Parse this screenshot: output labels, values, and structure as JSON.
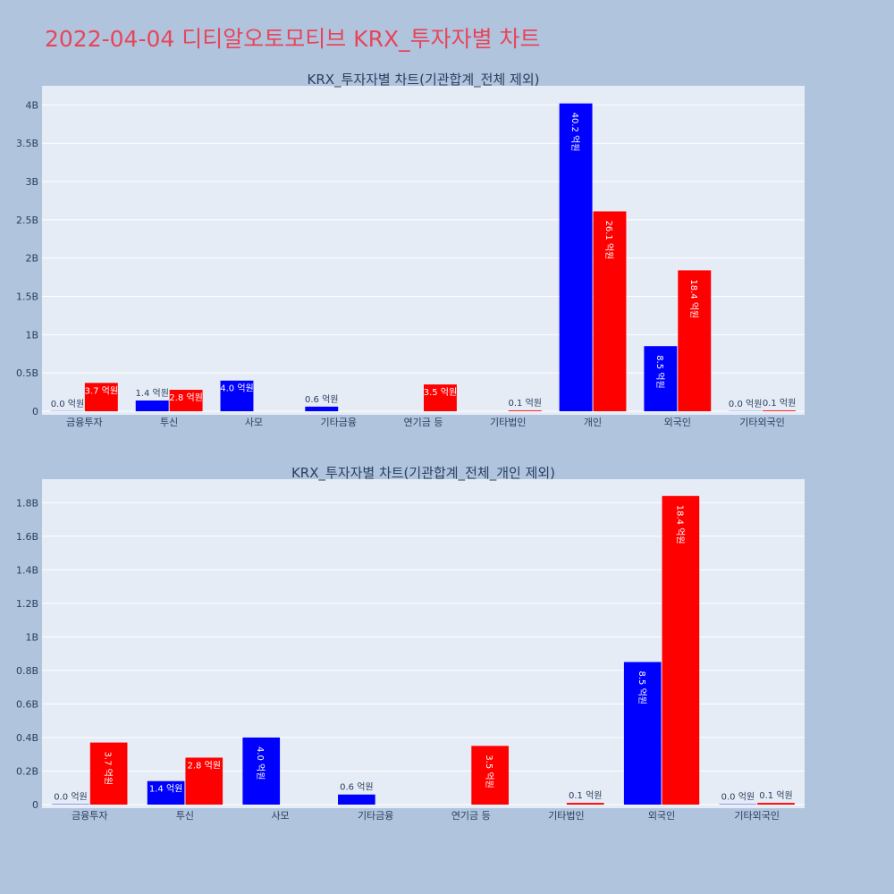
{
  "title": "2022-04-04 디티알오토모티브 KRX_투자자별 차트",
  "colors": {
    "buy": "#0000ff",
    "sell": "#ff0000",
    "title": "#e8455a",
    "background": "#b0c4de",
    "plot_bg": "#e5ecf6"
  },
  "chart_data": [
    {
      "type": "bar",
      "title": "KRX_투자자별 차트(기관합계_전체 제외)",
      "categories": [
        "금융투자",
        "투신",
        "사모",
        "기타금융",
        "연기금 등",
        "기타법인",
        "개인",
        "외국인",
        "기타외국인"
      ],
      "yticks": [
        "0",
        "0.5B",
        "1B",
        "1.5B",
        "2B",
        "2.5B",
        "3B",
        "3.5B",
        "4B"
      ],
      "ylim": [
        0,
        4250000000
      ],
      "grid": true,
      "series": [
        {
          "values": [
            2000000,
            140000000,
            400000000,
            60000000,
            0,
            0,
            4020000000,
            850000000,
            2000000
          ],
          "labels": [
            "0.0 억원",
            "1.4 억원",
            "4.0 억원",
            "0.6 억원",
            "",
            "",
            "40.2 억원",
            "8.5 억원",
            "0.0 억원"
          ]
        },
        {
          "values": [
            370000000,
            280000000,
            0,
            0,
            350000000,
            10000000,
            2610000000,
            1840000000,
            10000000
          ],
          "labels": [
            "3.7 억원",
            "2.8 억원",
            "",
            "",
            "3.5 억원",
            "0.1 억원",
            "26.1 억원",
            "18.4 억원",
            "0.1 억원"
          ]
        }
      ]
    },
    {
      "type": "bar",
      "title": "KRX_투자자별 차트(기관합계_전체_개인 제외)",
      "categories": [
        "금융투자",
        "투신",
        "사모",
        "기타금융",
        "연기금 등",
        "기타법인",
        "외국인",
        "기타외국인"
      ],
      "yticks": [
        "0",
        "0.2B",
        "0.4B",
        "0.6B",
        "0.8B",
        "1B",
        "1.2B",
        "1.4B",
        "1.6B",
        "1.8B"
      ],
      "ylim": [
        0,
        1940000000
      ],
      "grid": true,
      "series": [
        {
          "values": [
            2000000,
            140000000,
            400000000,
            60000000,
            0,
            0,
            850000000,
            2000000
          ],
          "labels": [
            "0.0 억원",
            "1.4 억원",
            "4.0 억원",
            "0.6 억원",
            "",
            "",
            "8.5 억원",
            "0.0 억원"
          ]
        },
        {
          "values": [
            370000000,
            280000000,
            0,
            0,
            350000000,
            10000000,
            1840000000,
            10000000
          ],
          "labels": [
            "3.7 억원",
            "2.8 억원",
            "",
            "",
            "3.5 억원",
            "0.1 억원",
            "18.4 억원",
            "0.1 억원"
          ]
        }
      ]
    }
  ]
}
